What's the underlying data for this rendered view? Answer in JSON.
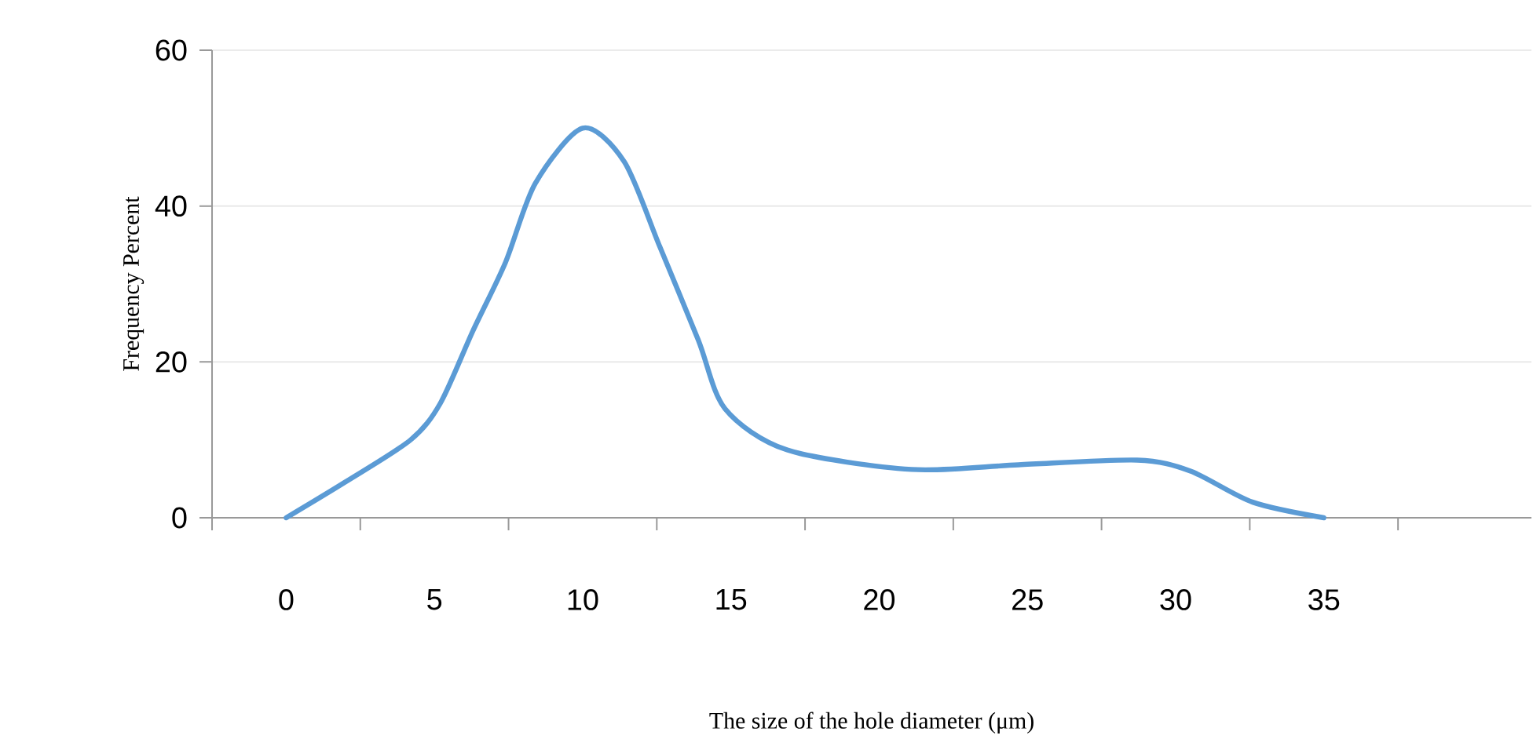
{
  "chart_data": {
    "type": "line",
    "xlabel": "The size of the hole diameter (μm)",
    "ylabel": "Frequency  Percent",
    "x": [
      0,
      2,
      4.2,
      5.2,
      6.3,
      7.4,
      8.4,
      10,
      11.4,
      12.6,
      13.9,
      14.8,
      16.9,
      21.1,
      24.7,
      28.7,
      30.5,
      32.6,
      35
    ],
    "values": [
      0,
      4.6,
      10,
      14.7,
      24,
      32.8,
      42.9,
      50,
      45.7,
      34.8,
      22.8,
      14,
      8.7,
      6.2,
      6.8,
      7.4,
      6,
      2,
      0
    ],
    "color": "#5b9bd5",
    "line_style": "solid",
    "grid": "y",
    "xlim": [
      -2.5,
      42
    ],
    "ylim": [
      0,
      60
    ],
    "xticks": [
      {
        "value": -2.5,
        "label": null
      },
      0,
      {
        "value": 2.5,
        "label": null
      },
      5,
      {
        "value": 7.5,
        "label": null
      },
      10,
      {
        "value": 12.5,
        "label": null
      },
      15,
      {
        "value": 17.5,
        "label": null
      },
      20,
      {
        "value": 22.5,
        "label": null
      },
      25,
      {
        "value": 27.5,
        "label": null
      },
      30,
      {
        "value": 32.5,
        "label": null
      },
      35,
      {
        "value": 37.5,
        "label": null
      }
    ],
    "yticks": [
      0,
      20,
      40,
      60
    ]
  }
}
